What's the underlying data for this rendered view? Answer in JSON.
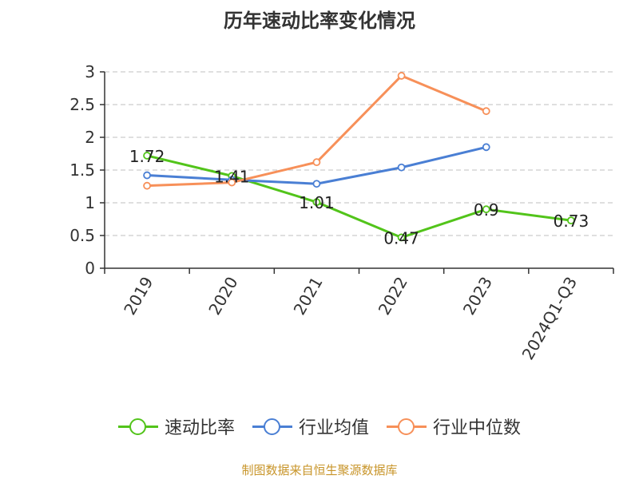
{
  "chart_data": {
    "type": "line",
    "title": "历年速动比率变化情况",
    "categories": [
      "2019",
      "2020",
      "2021",
      "2022",
      "2023",
      "2024Q1-Q3"
    ],
    "ylim": [
      0,
      3
    ],
    "yticks": [
      "0",
      "0.5",
      "1",
      "1.5",
      "2",
      "2.5",
      "3"
    ],
    "grid": true,
    "legend_position": "bottom",
    "series": [
      {
        "name": "速动比率",
        "color": "#52c41a",
        "values": [
          1.72,
          1.41,
          1.01,
          0.47,
          0.9,
          0.73
        ],
        "labels": [
          "1.72",
          "1.41",
          "1.01",
          "0.47",
          "0.9",
          "0.73"
        ]
      },
      {
        "name": "行业均值",
        "color": "#4a7fd4",
        "values": [
          1.42,
          1.35,
          1.29,
          1.54,
          1.85,
          null
        ]
      },
      {
        "name": "行业中位数",
        "color": "#f79059",
        "values": [
          1.26,
          1.31,
          1.62,
          2.94,
          2.4,
          null
        ]
      }
    ]
  },
  "source": "制图数据来自恒生聚源数据库"
}
